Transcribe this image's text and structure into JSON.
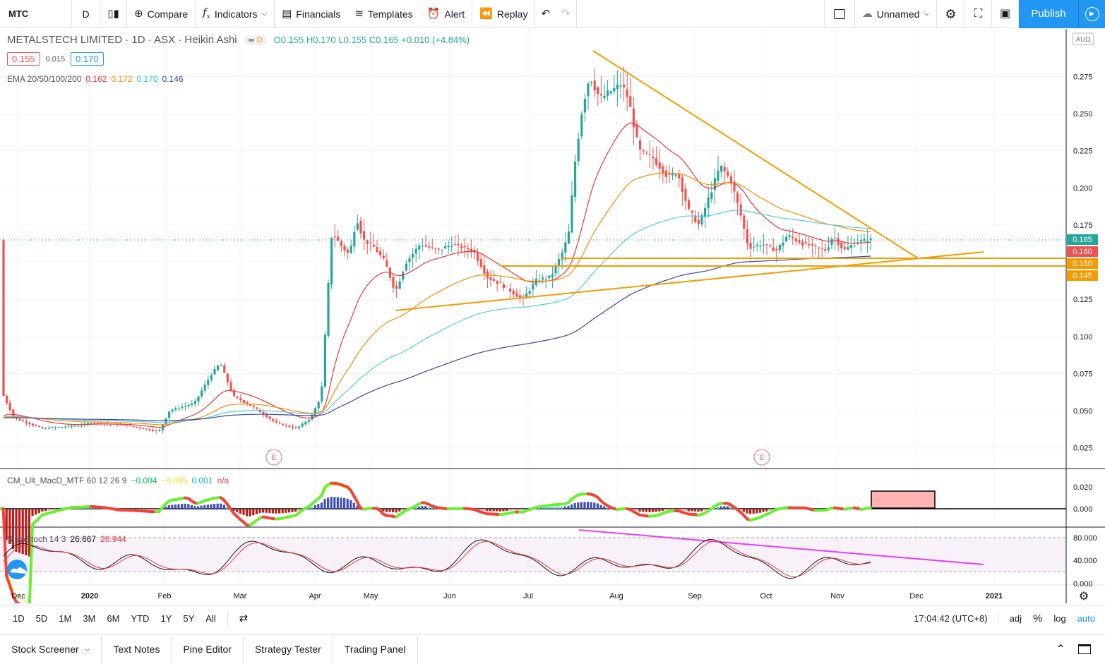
{
  "toolbar": {
    "symbol": "MTC",
    "interval": "D",
    "compare": "Compare",
    "indicators": "Indicators",
    "financials": "Financials",
    "templates": "Templates",
    "alert": "Alert",
    "replay": "Replay",
    "layout_name": "Unnamed",
    "publish": "Publish"
  },
  "legend": {
    "title": "METALSTECH LIMITED · 1D · ASX · Heikin Ashi",
    "badge": "D",
    "ohlc": "O0.155 H0.170 L0.155 C0.165 +0.010 (+4.84%)",
    "bid": "0.155",
    "spread": "0.015",
    "ask": "0.170",
    "ema_label": "EMA 20/50/100/200",
    "ema_values": [
      "0.162",
      "0.172",
      "0.170",
      "0.146"
    ],
    "macd_label": "CM_Ult_MacD_MTF 60 12 26 9",
    "macd_values": [
      "−0.004",
      "−0.005",
      "0.001",
      "n/a"
    ],
    "stoch_label": "SlowStoch 14 3",
    "stoch_values": [
      "26.667",
      "26.944"
    ]
  },
  "price_axis": {
    "currency": "AUD",
    "ticks": [
      "0.275",
      "0.250",
      "0.225",
      "0.200",
      "0.175",
      "0.150",
      "0.125",
      "0.100",
      "0.075",
      "0.050",
      "0.025"
    ],
    "tags": [
      {
        "label": "0.165",
        "color": "#26a69a"
      },
      {
        "label": "0.160",
        "color": "#ef5350"
      },
      {
        "label": "0.150",
        "color": "#f59b00"
      },
      {
        "label": "0.145",
        "color": "#f59b00"
      }
    ]
  },
  "macd_axis": [
    "0.020",
    "0.000"
  ],
  "stoch_axis": [
    "80.000",
    "40.000",
    "0.000"
  ],
  "time_axis": [
    "Dec",
    "2020",
    "Feb",
    "Mar",
    "Apr",
    "May",
    "Jun",
    "Jul",
    "Aug",
    "Sep",
    "Oct",
    "Nov",
    "Dec",
    "2021"
  ],
  "earnings_marker": "E",
  "bottom_bar": {
    "ranges": [
      "1D",
      "5D",
      "1M",
      "3M",
      "6M",
      "YTD",
      "1Y",
      "5Y",
      "All"
    ],
    "clock": "17:04:42 (UTC+8)",
    "adj": "adj",
    "pct": "%",
    "log": "log",
    "auto": "auto"
  },
  "panel_tabs": [
    "Stock Screener",
    "Text Notes",
    "Pine Editor",
    "Strategy Tester",
    "Trading Panel"
  ],
  "chart_data": {
    "type": "line",
    "title": "METALSTECH LIMITED · 1D · ASX · Heikin Ashi",
    "ylim": [
      0.012,
      0.3
    ],
    "x": [
      "Dec",
      "2020",
      "Feb",
      "Mar",
      "Apr",
      "May",
      "Jun",
      "Jul",
      "Aug",
      "Sep",
      "Oct",
      "Nov"
    ],
    "series": [
      {
        "name": "Close",
        "values": [
          0.045,
          0.038,
          0.04,
          0.075,
          0.045,
          0.17,
          0.16,
          0.14,
          0.27,
          0.21,
          0.165,
          0.165
        ]
      },
      {
        "name": "EMA 20",
        "values": [
          0.04,
          0.038,
          0.038,
          0.055,
          0.045,
          0.14,
          0.155,
          0.14,
          0.22,
          0.2,
          0.17,
          0.162
        ]
      },
      {
        "name": "EMA 200",
        "values": [
          0.038,
          0.038,
          0.038,
          0.04,
          0.043,
          0.065,
          0.085,
          0.095,
          0.12,
          0.135,
          0.142,
          0.146
        ]
      }
    ],
    "grid": true
  }
}
